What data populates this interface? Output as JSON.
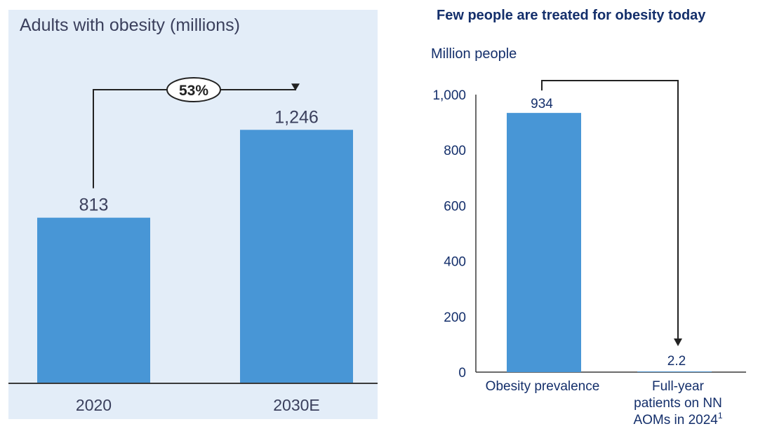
{
  "left": {
    "title": "Adults with obesity (millions)",
    "growth_label": "53%"
  },
  "right": {
    "title": "Few people are treated for obesity today",
    "unit_label": "Million people",
    "footnote_marker": "1"
  },
  "colors": {
    "bar": "#4896d6",
    "panel_bg": "#e3edf8",
    "text_dark": "#3a3f5c",
    "text_navy": "#142f6b",
    "axis": "#3a3a3a"
  },
  "chart_data": [
    {
      "type": "bar",
      "title": "Adults with obesity (millions)",
      "categories": [
        "2020",
        "2030E"
      ],
      "values": [
        813,
        1246
      ],
      "value_labels": [
        "813",
        "1,246"
      ],
      "ylim": [
        0,
        1500
      ],
      "grid": false,
      "annotation": "53%"
    },
    {
      "type": "bar",
      "title": "Few people are treated for obesity today",
      "ylabel": "Million people",
      "categories": [
        "Obesity prevalence",
        "Full-year patients on NN AOMs in 2024"
      ],
      "category_lines": [
        [
          "Obesity prevalence"
        ],
        [
          "Full-",
          "year",
          "patients on NN",
          "AOMs in 2024"
        ]
      ],
      "values": [
        934,
        2.2
      ],
      "value_labels": [
        "934",
        "2.2"
      ],
      "ylim": [
        0,
        1000
      ],
      "yticks": [
        0,
        200,
        400,
        600,
        800,
        1000
      ],
      "ytick_labels": [
        "0",
        "200",
        "400",
        "600",
        "800",
        "1,000"
      ],
      "grid": false
    }
  ]
}
